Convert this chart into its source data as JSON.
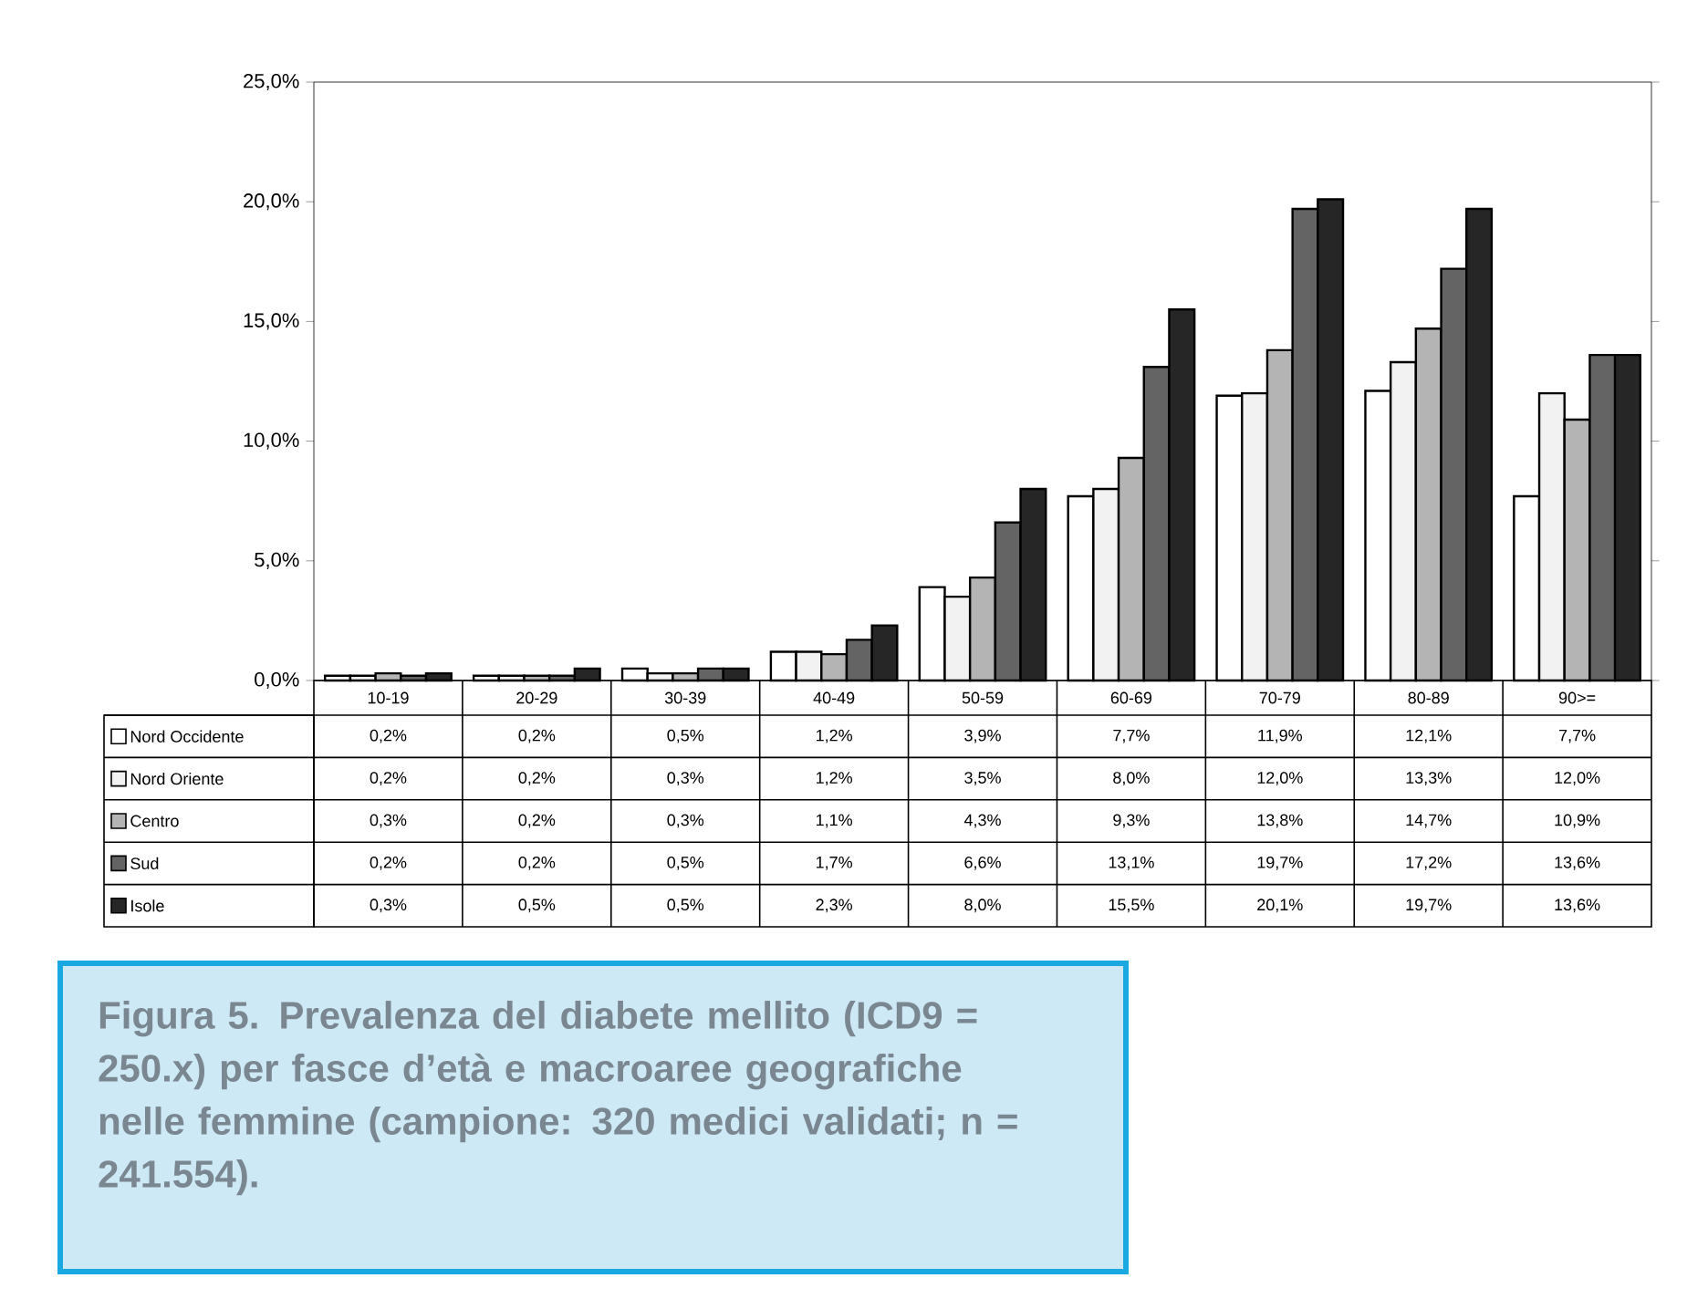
{
  "chart_data": {
    "type": "bar",
    "annotations": [
      "**Figura 5.** **Prevalenza del diabete mellito (ICD9 = 250.x) per fasce d’età e macroaree geografiche nelle femmine (campione: 320 medici validati; n = 241.554).**"
    ],
    "categories": [
      "10-19",
      "20-29",
      "30-39",
      "40-49",
      "50-59",
      "60-69",
      "70-79",
      "80-89",
      "90>="
    ],
    "series": [
      {
        "name": "Nord Occidente",
        "color": "#ffffff",
        "values": [
          0.2,
          0.2,
          0.5,
          1.2,
          3.9,
          7.7,
          11.9,
          12.1,
          7.7
        ],
        "value_labels": [
          "0,2%",
          "0,2%",
          "0,5%",
          "1,2%",
          "3,9%",
          "7,7%",
          "11,9%",
          "12,1%",
          "7,7%"
        ]
      },
      {
        "name": "Nord Oriente",
        "color": "#f2f2f2",
        "values": [
          0.2,
          0.2,
          0.3,
          1.2,
          3.5,
          8.0,
          12.0,
          13.3,
          12.0
        ],
        "value_labels": [
          "0,2%",
          "0,2%",
          "0,3%",
          "1,2%",
          "3,5%",
          "8,0%",
          "12,0%",
          "13,3%",
          "12,0%"
        ]
      },
      {
        "name": "Centro",
        "color": "#b4b4b4",
        "values": [
          0.3,
          0.2,
          0.3,
          1.1,
          4.3,
          9.3,
          13.8,
          14.7,
          10.9
        ],
        "value_labels": [
          "0,3%",
          "0,2%",
          "0,3%",
          "1,1%",
          "4,3%",
          "9,3%",
          "13,8%",
          "14,7%",
          "10,9%"
        ]
      },
      {
        "name": "Sud",
        "color": "#646464",
        "values": [
          0.2,
          0.2,
          0.5,
          1.7,
          6.6,
          13.1,
          19.7,
          17.2,
          13.6
        ],
        "value_labels": [
          "0,2%",
          "0,2%",
          "0,5%",
          "1,7%",
          "6,6%",
          "13,1%",
          "19,7%",
          "17,2%",
          "13,6%"
        ]
      },
      {
        "name": "Isole",
        "color": "#262626",
        "values": [
          0.3,
          0.5,
          0.5,
          2.3,
          8.0,
          15.5,
          20.1,
          19.7,
          13.6
        ],
        "value_labels": [
          "0,3%",
          "0,5%",
          "0,5%",
          "2,3%",
          "8,0%",
          "15,5%",
          "20,1%",
          "19,7%",
          "13,6%"
        ]
      }
    ],
    "ylim": [
      0,
      25
    ],
    "yticks": [
      {
        "value": 0,
        "label": "0,0%"
      },
      {
        "value": 5,
        "label": "5,0%"
      },
      {
        "value": 10,
        "label": "10,0%"
      },
      {
        "value": 15,
        "label": "15,0%"
      },
      {
        "value": 20,
        "label": "20,0%"
      },
      {
        "value": 25,
        "label": "25,0%"
      }
    ],
    "grid": false,
    "legend": "bottom left"
  }
}
